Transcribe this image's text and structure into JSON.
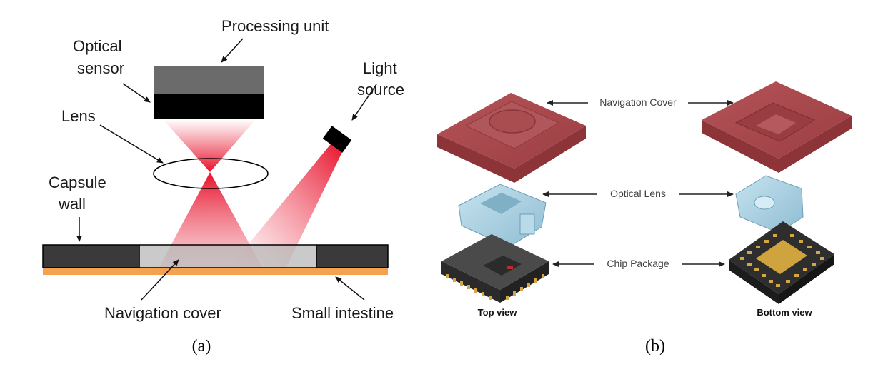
{
  "panel_a": {
    "caption": "(a)",
    "labels": {
      "processing_unit": "Processing unit",
      "optical_sensor_line1": "Optical",
      "optical_sensor_line2": "sensor",
      "lens": "Lens",
      "light_source_line1": "Light",
      "light_source_line2": "source",
      "capsule_wall_line1": "Capsule",
      "capsule_wall_line2": "wall",
      "navigation_cover": "Navigation cover",
      "small_intestine": "Small intestine"
    },
    "colors": {
      "processing_unit": "#6b6b6b",
      "optical_sensor": "#000000",
      "beam": "#ee1c24",
      "capsule_wall": "#3a3a3a",
      "navigation_cover": "#b3b3b3",
      "small_intestine": "#f4a24f"
    }
  },
  "panel_b": {
    "caption": "(b)",
    "labels": {
      "navigation_cover": "Navigation Cover",
      "optical_lens": "Optical Lens",
      "chip_package": "Chip Package",
      "top_view": "Top view",
      "bottom_view": "Bottom view"
    },
    "colors": {
      "cover": "#a8474b",
      "lens": "#a9cfe0",
      "chip": "#3c3c3c",
      "pins": "#d6a640"
    }
  }
}
